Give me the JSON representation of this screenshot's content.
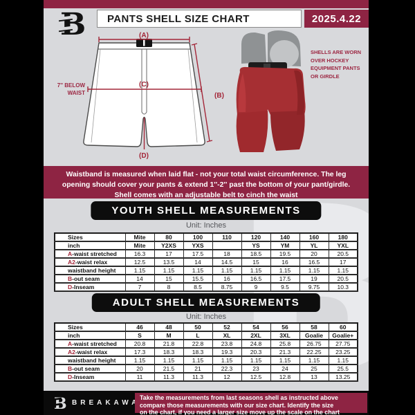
{
  "colors": {
    "maroon": "#8e2443",
    "accent_red": "#a32638",
    "page_bg": "#d8d9dc",
    "capsule_bg": "#0d0d0d",
    "shell_red": "#a62f33",
    "gear_gray": "#8f9294"
  },
  "header": {
    "title": "PANTS SHELL SIZE CHART",
    "date": "2025.4.22"
  },
  "diagram": {
    "label_a": "(A)",
    "label_b": "(B)",
    "label_c": "(C)",
    "label_d": "(D)",
    "waist_note_line1": "7'' BELOW",
    "waist_note_line2": "WAIST"
  },
  "photo": {
    "caption_lines": [
      "SHELLS ARE WORN",
      "OVER HOCKEY",
      "EQUIPMENT PANTS",
      "OR GIRDLE"
    ]
  },
  "banner": {
    "lines": [
      "Waistband is measured when laid flat - not your total waist circumference. The leg",
      "opening should cover your pants & extend 1''-2'' past the bottom of your pant/girdle.",
      "Shell comes with an adjustable belt to cinch the waist"
    ]
  },
  "youth": {
    "title": "YOUTH SHELL MEASUREMENTS",
    "unit": "Unit: Inches"
  },
  "adult": {
    "title": "ADULT SHELL MEASUREMENTS",
    "unit": "Unit: Inches"
  },
  "youth_table": {
    "header_rows": [
      {
        "prefix": "",
        "label": "Sizes",
        "values": [
          "Mite",
          "80",
          "100",
          "110",
          "120",
          "140",
          "160",
          "180"
        ]
      },
      {
        "prefix": "",
        "label": "inch",
        "values": [
          "Mite",
          "Y2XS",
          "YXS",
          "",
          "YS",
          "YM",
          "YL",
          "YXL"
        ]
      }
    ],
    "rows": [
      {
        "prefix": "A",
        "label": "-waist stretched",
        "values": [
          "16.3",
          "17",
          "17.5",
          "18",
          "18.5",
          "19.5",
          "20",
          "20.5"
        ]
      },
      {
        "prefix": "A2",
        "label": "-waist relax",
        "values": [
          "12.5",
          "13.5",
          "14",
          "14.5",
          "15",
          "16",
          "16.5",
          "17"
        ]
      },
      {
        "prefix": "",
        "label": "waistband height",
        "values": [
          "1.15",
          "1.15",
          "1.15",
          "1.15",
          "1.15",
          "1.15",
          "1.15",
          "1.15"
        ]
      },
      {
        "prefix": "B",
        "label": "-out seam",
        "values": [
          "14",
          "15",
          "15.5",
          "16",
          "16.5",
          "17.5",
          "19",
          "20.5"
        ]
      },
      {
        "prefix": "D",
        "label": "-Inseam",
        "values": [
          "7",
          "8",
          "8.5",
          "8.75",
          "9",
          "9.5",
          "9.75",
          "10.3"
        ]
      }
    ]
  },
  "adult_table": {
    "header_rows": [
      {
        "prefix": "",
        "label": "Sizes",
        "values": [
          "46",
          "48",
          "50",
          "52",
          "54",
          "56",
          "58",
          "60"
        ]
      },
      {
        "prefix": "",
        "label": "inch",
        "values": [
          "S",
          "M",
          "L",
          "XL",
          "2XL",
          "3XL",
          "Goalie",
          "Goalie+"
        ]
      }
    ],
    "rows": [
      {
        "prefix": "A",
        "label": "-waist stretched",
        "values": [
          "20.8",
          "21.8",
          "22.8",
          "23.8",
          "24.8",
          "25.8",
          "26.75",
          "27.75"
        ]
      },
      {
        "prefix": "A2",
        "label": "-waist relax",
        "values": [
          "17.3",
          "18.3",
          "18.3",
          "19.3",
          "20.3",
          "21.3",
          "22.25",
          "23.25"
        ]
      },
      {
        "prefix": "",
        "label": "waistband height",
        "values": [
          "1.15",
          "1.15",
          "1.15",
          "1.15",
          "1.15",
          "1.15",
          "1.15",
          "1.15"
        ]
      },
      {
        "prefix": "B",
        "label": "-out seam",
        "values": [
          "20",
          "21.5",
          "21",
          "22.3",
          "23",
          "24",
          "25",
          "25.5"
        ]
      },
      {
        "prefix": "D",
        "label": "-Inseam",
        "values": [
          "11",
          "11.3",
          "11.3",
          "12",
          "12.5",
          "12.8",
          "13",
          "13.25"
        ]
      }
    ]
  },
  "footer": {
    "brand": "BREAKAWAY",
    "note_lines": [
      "Take the measurements from last seasons shell as instructed above",
      "compare those measurements  with our size chart. Identify the size",
      "on the chart, if you need a larger size move up the scale on the chart"
    ]
  }
}
